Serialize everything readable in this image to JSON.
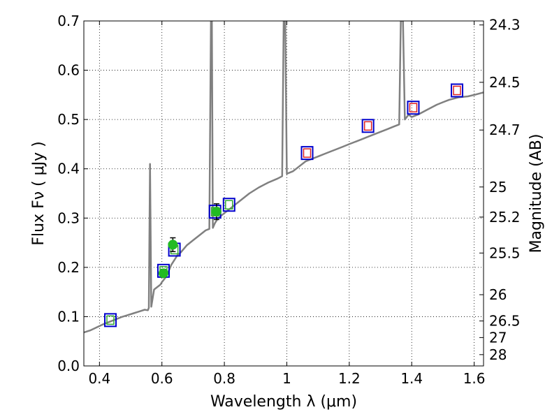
{
  "chart_data": {
    "type": "scatter",
    "xlabel": "Wavelength  λ (μm)",
    "ylabel": "Flux  Fν  ( μJy )",
    "y2label": "Magnitude (AB)",
    "xlim": [
      0.35,
      1.63
    ],
    "ylim": [
      0.0,
      0.7
    ],
    "grid": true,
    "colors": {
      "spectrum": "#808080",
      "observed": "#22bb22",
      "model_box": "#0000cc",
      "inner_green": "#33aa33",
      "inner_red": "#dd2222"
    },
    "x_ticks": [
      {
        "v": 0.4,
        "label": "0.4"
      },
      {
        "v": 0.6,
        "label": "0.6"
      },
      {
        "v": 0.8,
        "label": "0.8"
      },
      {
        "v": 1.0,
        "label": "1"
      },
      {
        "v": 1.2,
        "label": "1.2"
      },
      {
        "v": 1.4,
        "label": "1.4"
      },
      {
        "v": 1.6,
        "label": "1.6"
      }
    ],
    "y_ticks": [
      {
        "v": 0.0,
        "label": "0.0"
      },
      {
        "v": 0.1,
        "label": "0.1"
      },
      {
        "v": 0.2,
        "label": "0.2"
      },
      {
        "v": 0.3,
        "label": "0.3"
      },
      {
        "v": 0.4,
        "label": "0.4"
      },
      {
        "v": 0.5,
        "label": "0.5"
      },
      {
        "v": 0.6,
        "label": "0.6"
      },
      {
        "v": 0.7,
        "label": "0.7"
      }
    ],
    "mag_ticks": [
      {
        "v": 24.3,
        "label": "24.3"
      },
      {
        "v": 24.5,
        "label": "24.5"
      },
      {
        "v": 24.7,
        "label": "24.7"
      },
      {
        "v": 25.0,
        "label": "25"
      },
      {
        "v": 25.2,
        "label": "25.2"
      },
      {
        "v": 25.5,
        "label": "25.5"
      },
      {
        "v": 26.0,
        "label": "26"
      },
      {
        "v": 26.5,
        "label": "26.5"
      },
      {
        "v": 27.0,
        "label": "27"
      },
      {
        "v": 28.0,
        "label": "28"
      }
    ],
    "spectrum": [
      [
        0.35,
        0.068
      ],
      [
        0.37,
        0.072
      ],
      [
        0.39,
        0.078
      ],
      [
        0.41,
        0.084
      ],
      [
        0.43,
        0.089
      ],
      [
        0.45,
        0.094
      ],
      [
        0.47,
        0.099
      ],
      [
        0.49,
        0.103
      ],
      [
        0.51,
        0.107
      ],
      [
        0.53,
        0.111
      ],
      [
        0.545,
        0.114
      ],
      [
        0.555,
        0.113
      ],
      [
        0.558,
        0.118
      ],
      [
        0.562,
        0.41
      ],
      [
        0.566,
        0.12
      ],
      [
        0.575,
        0.155
      ],
      [
        0.585,
        0.16
      ],
      [
        0.595,
        0.165
      ],
      [
        0.6,
        0.17
      ],
      [
        0.61,
        0.178
      ],
      [
        0.62,
        0.19
      ],
      [
        0.63,
        0.205
      ],
      [
        0.64,
        0.215
      ],
      [
        0.65,
        0.225
      ],
      [
        0.66,
        0.23
      ],
      [
        0.68,
        0.245
      ],
      [
        0.7,
        0.255
      ],
      [
        0.72,
        0.265
      ],
      [
        0.74,
        0.275
      ],
      [
        0.752,
        0.278
      ],
      [
        0.757,
        0.7
      ],
      [
        0.76,
        0.7
      ],
      [
        0.763,
        0.28
      ],
      [
        0.77,
        0.29
      ],
      [
        0.78,
        0.3
      ],
      [
        0.8,
        0.31
      ],
      [
        0.82,
        0.32
      ],
      [
        0.85,
        0.335
      ],
      [
        0.88,
        0.35
      ],
      [
        0.91,
        0.362
      ],
      [
        0.94,
        0.372
      ],
      [
        0.97,
        0.38
      ],
      [
        0.985,
        0.385
      ],
      [
        0.99,
        0.7
      ],
      [
        0.995,
        0.7
      ],
      [
        1.0,
        0.39
      ],
      [
        1.02,
        0.395
      ],
      [
        1.04,
        0.405
      ],
      [
        1.06,
        0.415
      ],
      [
        1.08,
        0.42
      ],
      [
        1.1,
        0.425
      ],
      [
        1.12,
        0.43
      ],
      [
        1.14,
        0.435
      ],
      [
        1.16,
        0.44
      ],
      [
        1.18,
        0.445
      ],
      [
        1.2,
        0.45
      ],
      [
        1.22,
        0.455
      ],
      [
        1.24,
        0.46
      ],
      [
        1.26,
        0.465
      ],
      [
        1.28,
        0.47
      ],
      [
        1.3,
        0.475
      ],
      [
        1.32,
        0.48
      ],
      [
        1.34,
        0.485
      ],
      [
        1.36,
        0.49
      ],
      [
        1.365,
        0.7
      ],
      [
        1.372,
        0.7
      ],
      [
        1.378,
        0.5
      ],
      [
        1.39,
        0.51
      ],
      [
        1.4,
        0.505
      ],
      [
        1.42,
        0.51
      ],
      [
        1.45,
        0.52
      ],
      [
        1.48,
        0.53
      ],
      [
        1.5,
        0.535
      ],
      [
        1.52,
        0.54
      ],
      [
        1.55,
        0.545
      ],
      [
        1.58,
        0.547
      ],
      [
        1.6,
        0.55
      ],
      [
        1.63,
        0.555
      ]
    ],
    "observed_points": [
      {
        "x": 0.605,
        "y": 0.188,
        "err": 0.008
      },
      {
        "x": 0.635,
        "y": 0.246,
        "err": 0.014
      },
      {
        "x": 0.775,
        "y": 0.313,
        "err": 0.016
      }
    ],
    "model_points": [
      {
        "x": 0.435,
        "y": 0.093,
        "inner": "green"
      },
      {
        "x": 0.605,
        "y": 0.193,
        "inner": "green"
      },
      {
        "x": 0.64,
        "y": 0.236,
        "inner": "green"
      },
      {
        "x": 0.77,
        "y": 0.313,
        "inner": "green"
      },
      {
        "x": 0.815,
        "y": 0.327,
        "inner": "green"
      },
      {
        "x": 1.065,
        "y": 0.432,
        "inner": "red"
      },
      {
        "x": 1.26,
        "y": 0.487,
        "inner": "red"
      },
      {
        "x": 1.405,
        "y": 0.524,
        "inner": "red"
      },
      {
        "x": 1.545,
        "y": 0.559,
        "inner": "red"
      }
    ]
  }
}
